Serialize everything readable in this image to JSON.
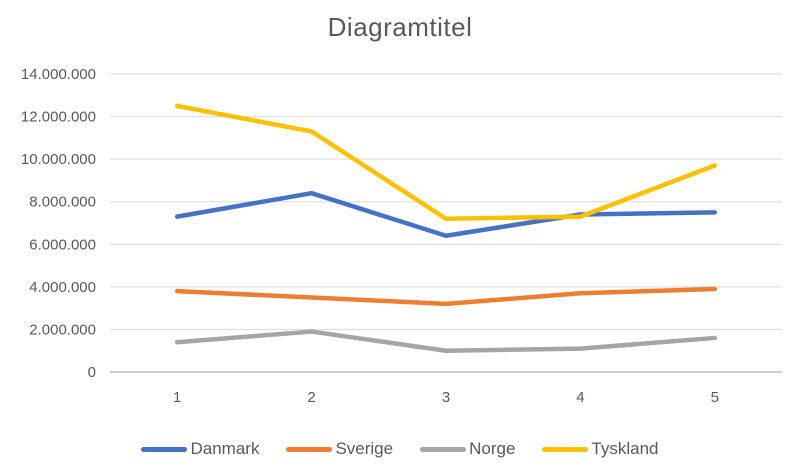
{
  "chart": {
    "background": "#ffffff",
    "text_color": "#595959",
    "gridline_color": "#d9d9d9",
    "axis_line_color": "#bfbfbf"
  },
  "chart_data": {
    "type": "line",
    "title": "Diagramtitel",
    "xlabel": "",
    "ylabel": "",
    "x": [
      1,
      2,
      3,
      4,
      5
    ],
    "x_tick_labels": [
      "1",
      "2",
      "3",
      "4",
      "5"
    ],
    "ylim": [
      0,
      14000000
    ],
    "y_ticks": [
      0,
      2000000,
      4000000,
      6000000,
      8000000,
      10000000,
      12000000,
      14000000
    ],
    "y_tick_labels": [
      "0",
      "2.000.000",
      "4.000.000",
      "6.000.000",
      "8.000.000",
      "10.000.000",
      "12.000.000",
      "14.000.000"
    ],
    "grid": "horizontal",
    "legend_position": "bottom",
    "series": [
      {
        "name": "Danmark",
        "color": "#4472C4",
        "values": [
          7300000,
          8400000,
          6400000,
          7400000,
          7500000
        ]
      },
      {
        "name": "Sverige",
        "color": "#ED7D31",
        "values": [
          3800000,
          3500000,
          3200000,
          3700000,
          3900000
        ]
      },
      {
        "name": "Norge",
        "color": "#A5A5A5",
        "values": [
          1400000,
          1900000,
          1000000,
          1100000,
          1600000
        ]
      },
      {
        "name": "Tyskland",
        "color": "#FFC000",
        "values": [
          12500000,
          11300000,
          7200000,
          7300000,
          9700000
        ]
      }
    ]
  }
}
